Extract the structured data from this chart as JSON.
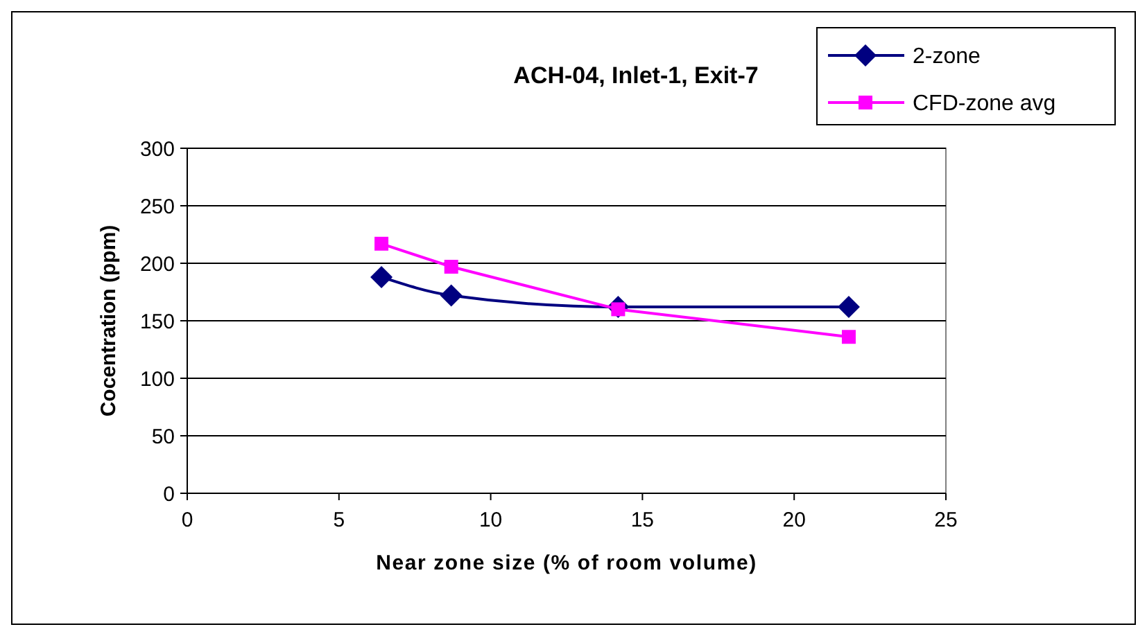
{
  "chart_data": {
    "type": "line",
    "title": "ACH-04, Inlet-1, Exit-7",
    "xlabel": "Near zone size (% of room volume)",
    "ylabel": "Cocentration (ppm)",
    "xlim": [
      0,
      25
    ],
    "xticks": [
      0,
      5,
      10,
      15,
      20,
      25
    ],
    "ylim": [
      0,
      300
    ],
    "yticks": [
      0,
      50,
      100,
      150,
      200,
      250,
      300
    ],
    "grid": "y",
    "legend": "top right",
    "series": [
      {
        "name": "2-zone",
        "color": "#000080",
        "marker": "diamond",
        "x": [
          6.4,
          8.7,
          14.2,
          21.8
        ],
        "values": [
          188,
          172,
          162,
          162
        ]
      },
      {
        "name": "CFD-zone avg",
        "color": "#ff00ff",
        "marker": "square",
        "x": [
          6.4,
          8.7,
          14.2,
          21.8
        ],
        "values": [
          217,
          197,
          160,
          136
        ]
      }
    ]
  }
}
